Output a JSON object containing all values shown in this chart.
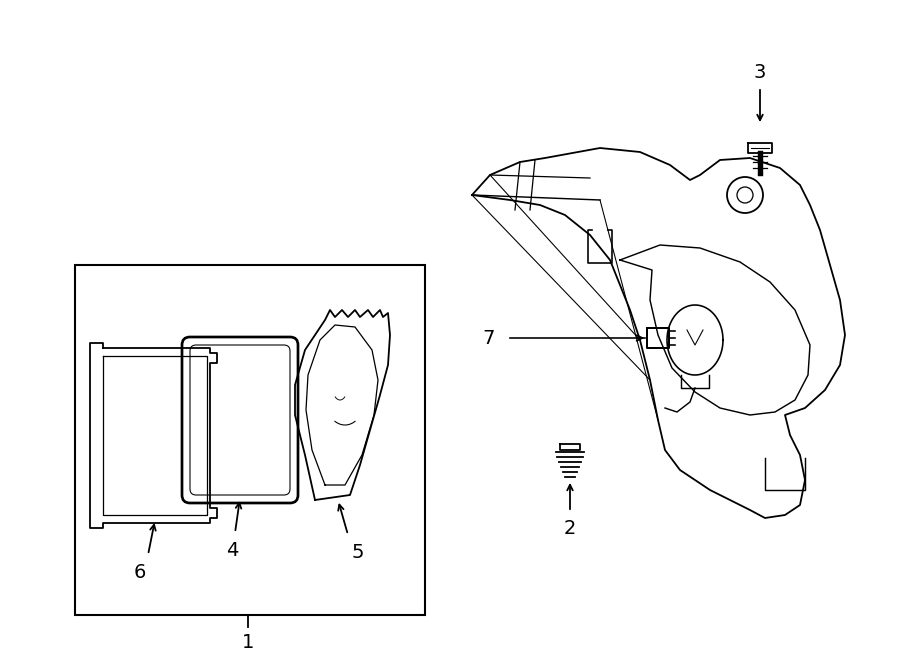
{
  "bg_color": "#ffffff",
  "line_color": "#000000",
  "lw": 1.3,
  "fig_w": 9.0,
  "fig_h": 6.61,
  "dpi": 100,
  "font_size": 14
}
